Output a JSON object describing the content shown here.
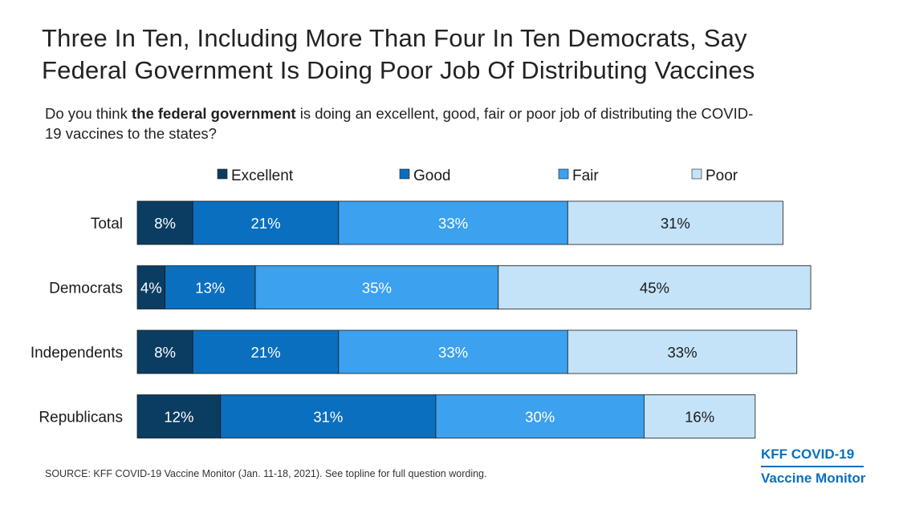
{
  "title_line1": "Three In Ten, Including More Than Four In Ten Democrats, Say",
  "title_line2": "Federal Government Is Doing Poor Job Of Distributing Vaccines",
  "question": {
    "prefix": "Do you think ",
    "bold": "the federal government",
    "suffix_line1": " is doing an excellent, good, fair or poor job of distributing the COVID-",
    "suffix_line2": "19 vaccines to the states?"
  },
  "source": "SOURCE: KFF COVID-19 Vaccine Monitor (Jan. 11-18, 2021). See topline for full question wording.",
  "logo": {
    "line1": "KFF COVID-19",
    "line2": "Vaccine Monitor"
  },
  "chart_data": {
    "type": "bar",
    "orientation": "horizontal",
    "stacked": true,
    "categories": [
      "Total",
      "Democrats",
      "Independents",
      "Republicans"
    ],
    "series": [
      {
        "name": "Excellent",
        "color": "#0b3d62",
        "values": [
          8,
          4,
          8,
          12
        ]
      },
      {
        "name": "Good",
        "color": "#0a6fbf",
        "values": [
          21,
          13,
          21,
          31
        ]
      },
      {
        "name": "Fair",
        "color": "#3ca1ee",
        "values": [
          33,
          35,
          33,
          30
        ]
      },
      {
        "name": "Poor",
        "color": "#c4e3f8",
        "values": [
          31,
          45,
          33,
          16
        ]
      }
    ],
    "labels": [
      [
        "8%",
        "21%",
        "33%",
        "31%"
      ],
      [
        "4%",
        "13%",
        "35%",
        "45%"
      ],
      [
        "8%",
        "21%",
        "33%",
        "33%"
      ],
      [
        "12%",
        "31%",
        "30%",
        "16%"
      ]
    ],
    "label_colors": [
      "#ffffff",
      "#ffffff",
      "#ffffff",
      "#1a1a1a"
    ],
    "legend_position": "top",
    "grid": false
  }
}
